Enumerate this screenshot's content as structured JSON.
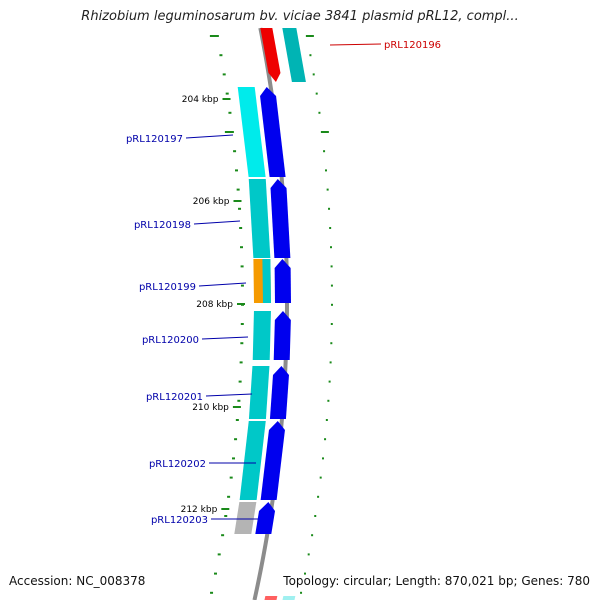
{
  "title": "Rhizobium leguminosarum bv. viciae 3841 plasmid pRL12, compl...",
  "footer": {
    "accession": "Accession: NC_008378",
    "topology": "Topology: circular; Length: 870,021 bp; Genes: 780"
  },
  "colors": {
    "backbone": "#8c8c8c",
    "forward_cds": "#0000ee",
    "forward_orf": "#00c8c8",
    "reverse_cds": "#ee0000",
    "reverse_orf_dark": "#00b4b4",
    "reverse_orf_light": "#00e6e6",
    "orange_feature": "#f59a00",
    "gray_feature": "#b4b4b4",
    "tick": "#1a8a1a",
    "label_forward": "#0000aa",
    "label_reverse": "#cc0000"
  },
  "tick_labels": [
    "204 kbp",
    "206 kbp",
    "208 kbp",
    "210 kbp",
    "212 kbp"
  ],
  "genes": [
    {
      "label": "pRL120196",
      "strand": "reverse"
    },
    {
      "label": "pRL120197",
      "strand": "forward"
    },
    {
      "label": "pRL120198",
      "strand": "forward"
    },
    {
      "label": "pRL120199",
      "strand": "forward"
    },
    {
      "label": "pRL120200",
      "strand": "forward"
    },
    {
      "label": "pRL120201",
      "strand": "forward"
    },
    {
      "label": "pRL120202",
      "strand": "forward"
    },
    {
      "label": "pRL120203",
      "strand": "forward"
    }
  ]
}
